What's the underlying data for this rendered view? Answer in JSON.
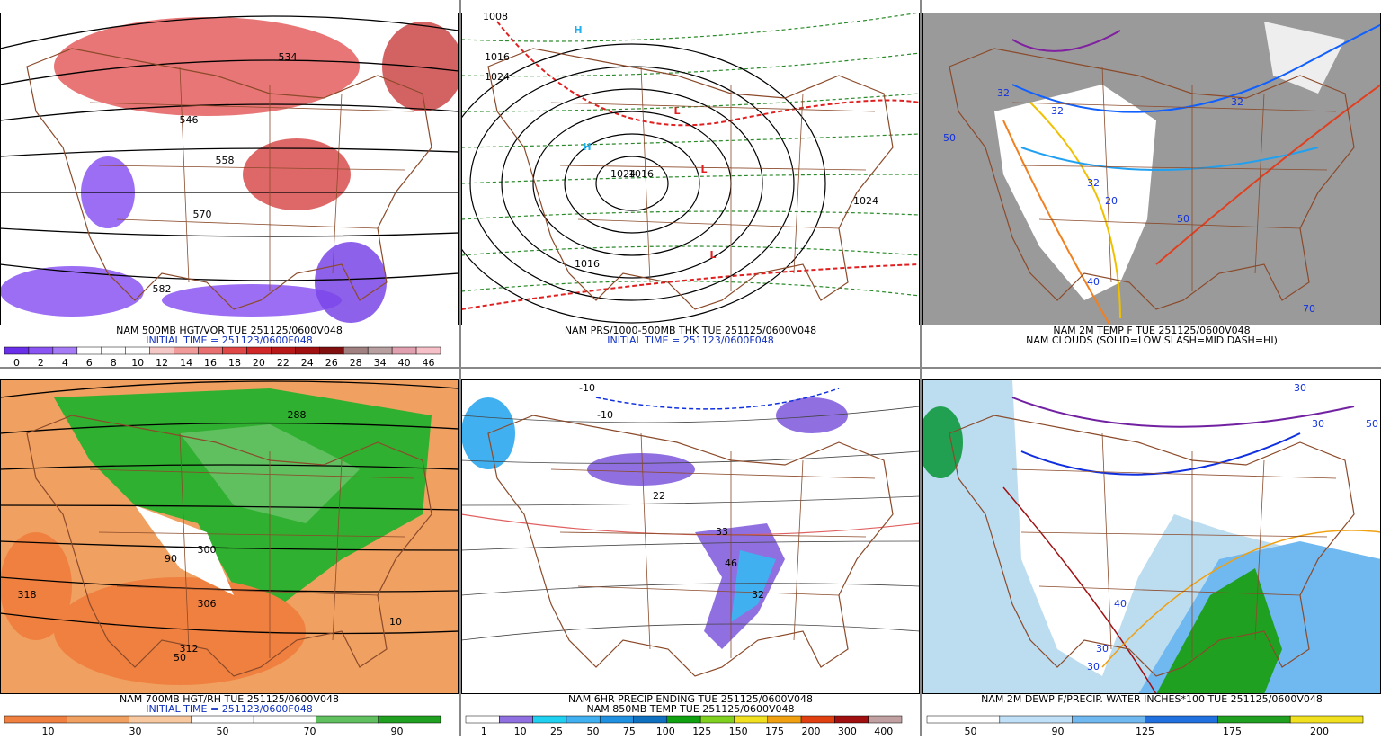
{
  "panels": [
    {
      "title": "NAM 500MB HGT/VOR TUE 251125/0600V048",
      "subtitle": "INITIAL TIME = 251123/0600F048",
      "background": "#ffffff",
      "colorbar": {
        "colors": [
          "#6a2fe8",
          "#8a55f2",
          "#a57cf5",
          "#ffffff",
          "#ffffff",
          "#ffffff",
          "#f5c8c8",
          "#f09a9a",
          "#e87070",
          "#e04848",
          "#d02828",
          "#b81818",
          "#a01010",
          "#801010",
          "#a08080",
          "#b8a0a0",
          "#e0a0b0",
          "#f5c0c8"
        ],
        "labels": [
          0,
          2,
          4,
          6,
          8,
          10,
          12,
          14,
          16,
          18,
          20,
          22,
          24,
          26,
          28,
          34,
          40,
          46
        ]
      },
      "map_labels": [
        "534",
        "558",
        "570",
        "582",
        "546"
      ]
    },
    {
      "title": "NAM PRS/1000-500MB THK TUE 251125/0600V048",
      "subtitle": "INITIAL TIME = 251123/0600F048",
      "background": "#ffffff",
      "colorbar": null,
      "map_labels": [
        "1008",
        "1016",
        "1024",
        "1024",
        "1016",
        "1024",
        "1016",
        "H",
        "H",
        "L",
        "L",
        "L"
      ]
    },
    {
      "title": "NAM 2M TEMP F TUE 251125/0600V048",
      "subtitle": "NAM CLOUDS (SOLID=LOW SLASH=MID DASH=HI)",
      "background": "#9a9a9a",
      "colorbar": null,
      "map_labels": [
        "32",
        "32",
        "32",
        "20",
        "50",
        "40",
        "70",
        "32",
        "50"
      ]
    },
    {
      "title": "NAM 700MB HGT/RH TUE 251125/0600V048",
      "subtitle": "INITIAL TIME = 251123/0600F048",
      "background": "#f0a060",
      "colorbar": {
        "colors": [
          "#f08040",
          "#f0a060",
          "#f8c8a0",
          "#ffffff",
          "#ffffff",
          "#60c060",
          "#20a020"
        ],
        "labels": [
          10,
          30,
          50,
          70,
          90
        ]
      },
      "map_labels": [
        "318",
        "306",
        "312",
        "300",
        "288",
        "50",
        "10",
        "90"
      ]
    },
    {
      "title": "NAM 6HR PRECIP ENDING TUE 251125/0600V048",
      "subtitle": "NAM 850MB TEMP TUE 251125/0600V048",
      "background": "#ffffff",
      "colorbar": {
        "colors": [
          "#ffffff",
          "#9070e0",
          "#20d0f0",
          "#40b0f0",
          "#2090e0",
          "#1070c0",
          "#10a010",
          "#80d020",
          "#f0e020",
          "#f0a010",
          "#e04010",
          "#a01010",
          "#c0a0a0"
        ],
        "labels": [
          1,
          10,
          25,
          50,
          75,
          100,
          125,
          150,
          175,
          200,
          300,
          400
        ]
      },
      "map_labels": [
        "-10",
        "-10",
        "33",
        "46",
        "32",
        "22"
      ]
    },
    {
      "title": "NAM 2M DEWP F/PRECIP. WATER INCHES*100 TUE 251125/0600V048",
      "subtitle": null,
      "background": "#bcdcf0",
      "colorbar": {
        "colors": [
          "#ffffff",
          "#c0e0f8",
          "#70b8f0",
          "#2070e0",
          "#20a020",
          "#f0e020"
        ],
        "labels": [
          50,
          90,
          125,
          175,
          200
        ]
      },
      "map_labels": [
        "30",
        "30",
        "50",
        "40",
        "30",
        "30"
      ]
    }
  ]
}
